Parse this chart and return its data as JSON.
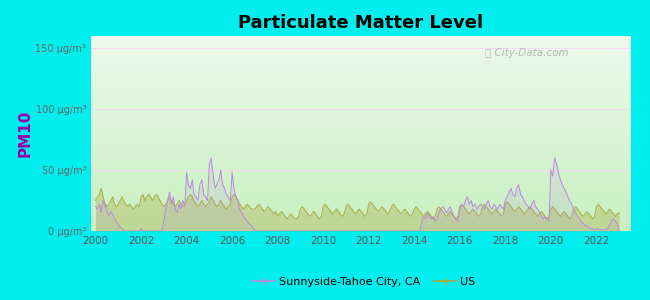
{
  "title": "Particulate Matter Level",
  "ylabel": "PM10",
  "ylabel_color": "#9900aa",
  "background_outer": "#00EEEE",
  "xmin": 1999.8,
  "xmax": 2023.5,
  "ymin": 0,
  "ymax": 160,
  "yticks": [
    0,
    50,
    100,
    150
  ],
  "ytick_labels": [
    "0 μg/m³",
    "50 μg/m³",
    "100 μg/m³",
    "150 μg/m³"
  ],
  "xticks": [
    2000,
    2002,
    2004,
    2006,
    2008,
    2010,
    2012,
    2014,
    2016,
    2018,
    2020,
    2022
  ],
  "city_color": "#bb88dd",
  "us_color": "#aaaa44",
  "legend_city_label": "Sunnyside-Tahoe City, CA",
  "legend_us_label": "US",
  "watermark": "⌕ City-Data.com",
  "bg_bottom": "#c8f0c0",
  "bg_top": "#edfaed",
  "city_x": [
    2000.0,
    2000.08,
    2000.17,
    2000.25,
    2000.33,
    2000.42,
    2000.5,
    2000.58,
    2000.67,
    2000.75,
    2000.83,
    2000.92,
    2001.0,
    2001.08,
    2001.17,
    2001.25,
    2001.33,
    2001.42,
    2001.5,
    2001.58,
    2001.67,
    2001.75,
    2001.83,
    2001.92,
    2002.0,
    2002.08,
    2002.17,
    2002.25,
    2002.33,
    2002.42,
    2002.5,
    2002.58,
    2002.67,
    2002.75,
    2002.83,
    2002.92,
    2003.0,
    2003.08,
    2003.17,
    2003.25,
    2003.33,
    2003.42,
    2003.5,
    2003.58,
    2003.67,
    2003.75,
    2003.83,
    2003.92,
    2004.0,
    2004.08,
    2004.17,
    2004.25,
    2004.33,
    2004.42,
    2004.5,
    2004.58,
    2004.67,
    2004.75,
    2004.83,
    2004.92,
    2005.0,
    2005.08,
    2005.17,
    2005.25,
    2005.33,
    2005.42,
    2005.5,
    2005.58,
    2005.67,
    2005.75,
    2005.83,
    2005.92,
    2006.0,
    2006.08,
    2006.17,
    2006.25,
    2006.33,
    2006.42,
    2006.5,
    2006.58,
    2006.67,
    2006.75,
    2006.83,
    2006.92,
    2007.0,
    2007.08,
    2007.17,
    2007.25,
    2007.33,
    2007.42,
    2007.5,
    2007.58,
    2007.67,
    2007.75,
    2007.83,
    2007.92,
    2008.0,
    2008.08,
    2008.17,
    2008.25,
    2008.33,
    2008.42,
    2008.5,
    2008.58,
    2008.67,
    2008.75,
    2008.83,
    2008.92,
    2009.0,
    2009.08,
    2009.17,
    2009.25,
    2009.33,
    2009.42,
    2009.5,
    2009.58,
    2009.67,
    2009.75,
    2009.83,
    2009.92,
    2010.0,
    2010.08,
    2010.17,
    2010.25,
    2010.33,
    2010.42,
    2010.5,
    2010.58,
    2010.67,
    2010.75,
    2010.83,
    2010.92,
    2011.0,
    2011.08,
    2011.17,
    2011.25,
    2011.33,
    2011.42,
    2011.5,
    2011.58,
    2011.67,
    2011.75,
    2011.83,
    2011.92,
    2012.0,
    2012.08,
    2012.17,
    2012.25,
    2012.33,
    2012.42,
    2012.5,
    2012.58,
    2012.67,
    2012.75,
    2012.83,
    2012.92,
    2013.0,
    2013.08,
    2013.17,
    2013.25,
    2013.33,
    2013.42,
    2013.5,
    2013.58,
    2013.67,
    2013.75,
    2013.83,
    2013.92,
    2014.0,
    2014.08,
    2014.17,
    2014.25,
    2014.33,
    2014.42,
    2014.5,
    2014.58,
    2014.67,
    2014.75,
    2014.83,
    2014.92,
    2015.0,
    2015.08,
    2015.17,
    2015.25,
    2015.33,
    2015.42,
    2015.5,
    2015.58,
    2015.67,
    2015.75,
    2015.83,
    2015.92,
    2016.0,
    2016.08,
    2016.17,
    2016.25,
    2016.33,
    2016.42,
    2016.5,
    2016.58,
    2016.67,
    2016.75,
    2016.83,
    2016.92,
    2017.0,
    2017.08,
    2017.17,
    2017.25,
    2017.33,
    2017.42,
    2017.5,
    2017.58,
    2017.67,
    2017.75,
    2017.83,
    2017.92,
    2018.0,
    2018.08,
    2018.17,
    2018.25,
    2018.33,
    2018.42,
    2018.5,
    2018.58,
    2018.67,
    2018.75,
    2018.83,
    2018.92,
    2019.0,
    2019.08,
    2019.17,
    2019.25,
    2019.33,
    2019.42,
    2019.5,
    2019.58,
    2019.67,
    2019.75,
    2019.83,
    2019.92,
    2020.0,
    2020.08,
    2020.17,
    2020.25,
    2020.33,
    2020.42,
    2020.5,
    2020.58,
    2020.67,
    2020.75,
    2020.83,
    2020.92,
    2021.0,
    2021.08,
    2021.17,
    2021.25,
    2021.33,
    2021.42,
    2021.5,
    2021.58,
    2021.67,
    2021.75,
    2021.83,
    2021.92,
    2022.0,
    2022.08,
    2022.17,
    2022.25,
    2022.33,
    2022.42,
    2022.5,
    2022.58,
    2022.67,
    2022.75,
    2022.83,
    2022.92,
    2023.0
  ],
  "city_y": [
    20,
    18,
    22,
    15,
    25,
    20,
    18,
    12,
    16,
    14,
    10,
    8,
    5,
    3,
    2,
    0,
    0,
    0,
    0,
    0,
    0,
    0,
    0,
    0,
    2,
    0,
    0,
    0,
    0,
    0,
    0,
    0,
    0,
    0,
    0,
    0,
    8,
    18,
    25,
    32,
    22,
    28,
    18,
    15,
    22,
    18,
    25,
    20,
    48,
    38,
    35,
    42,
    30,
    28,
    25,
    38,
    42,
    30,
    28,
    25,
    55,
    60,
    45,
    35,
    38,
    42,
    50,
    38,
    35,
    30,
    28,
    25,
    48,
    35,
    28,
    25,
    18,
    15,
    12,
    10,
    8,
    6,
    5,
    3,
    0,
    0,
    0,
    0,
    0,
    0,
    0,
    0,
    0,
    0,
    0,
    0,
    0,
    0,
    0,
    0,
    0,
    0,
    0,
    0,
    0,
    0,
    0,
    0,
    0,
    0,
    0,
    0,
    0,
    0,
    0,
    0,
    0,
    0,
    0,
    0,
    0,
    0,
    0,
    0,
    0,
    0,
    0,
    0,
    0,
    0,
    0,
    0,
    0,
    0,
    0,
    0,
    0,
    0,
    0,
    0,
    0,
    0,
    0,
    0,
    0,
    0,
    0,
    0,
    0,
    0,
    0,
    0,
    0,
    0,
    0,
    0,
    0,
    0,
    0,
    0,
    0,
    0,
    0,
    0,
    0,
    0,
    0,
    0,
    0,
    0,
    0,
    0,
    8,
    12,
    10,
    15,
    12,
    10,
    12,
    8,
    10,
    15,
    18,
    20,
    18,
    15,
    18,
    20,
    15,
    12,
    10,
    8,
    18,
    22,
    20,
    25,
    28,
    22,
    25,
    20,
    22,
    18,
    20,
    22,
    20,
    18,
    22,
    25,
    20,
    18,
    22,
    20,
    18,
    22,
    20,
    18,
    25,
    28,
    32,
    35,
    30,
    28,
    35,
    38,
    30,
    28,
    25,
    22,
    20,
    18,
    22,
    25,
    20,
    18,
    15,
    12,
    10,
    12,
    10,
    8,
    50,
    45,
    60,
    55,
    48,
    42,
    38,
    35,
    32,
    28,
    25,
    22,
    18,
    15,
    12,
    10,
    8,
    6,
    5,
    4,
    3,
    2,
    2,
    1,
    2,
    2,
    1,
    1,
    1,
    1,
    2,
    5,
    8,
    10,
    8,
    6,
    0
  ],
  "us_x": [
    2000.0,
    2000.08,
    2000.17,
    2000.25,
    2000.33,
    2000.42,
    2000.5,
    2000.58,
    2000.67,
    2000.75,
    2000.83,
    2000.92,
    2001.0,
    2001.08,
    2001.17,
    2001.25,
    2001.33,
    2001.42,
    2001.5,
    2001.58,
    2001.67,
    2001.75,
    2001.83,
    2001.92,
    2002.0,
    2002.08,
    2002.17,
    2002.25,
    2002.33,
    2002.42,
    2002.5,
    2002.58,
    2002.67,
    2002.75,
    2002.83,
    2002.92,
    2003.0,
    2003.08,
    2003.17,
    2003.25,
    2003.33,
    2003.42,
    2003.5,
    2003.58,
    2003.67,
    2003.75,
    2003.83,
    2003.92,
    2004.0,
    2004.08,
    2004.17,
    2004.25,
    2004.33,
    2004.42,
    2004.5,
    2004.58,
    2004.67,
    2004.75,
    2004.83,
    2004.92,
    2005.0,
    2005.08,
    2005.17,
    2005.25,
    2005.33,
    2005.42,
    2005.5,
    2005.58,
    2005.67,
    2005.75,
    2005.83,
    2005.92,
    2006.0,
    2006.08,
    2006.17,
    2006.25,
    2006.33,
    2006.42,
    2006.5,
    2006.58,
    2006.67,
    2006.75,
    2006.83,
    2006.92,
    2007.0,
    2007.08,
    2007.17,
    2007.25,
    2007.33,
    2007.42,
    2007.5,
    2007.58,
    2007.67,
    2007.75,
    2007.83,
    2007.92,
    2008.0,
    2008.08,
    2008.17,
    2008.25,
    2008.33,
    2008.42,
    2008.5,
    2008.58,
    2008.67,
    2008.75,
    2008.83,
    2008.92,
    2009.0,
    2009.08,
    2009.17,
    2009.25,
    2009.33,
    2009.42,
    2009.5,
    2009.58,
    2009.67,
    2009.75,
    2009.83,
    2009.92,
    2010.0,
    2010.08,
    2010.17,
    2010.25,
    2010.33,
    2010.42,
    2010.5,
    2010.58,
    2010.67,
    2010.75,
    2010.83,
    2010.92,
    2011.0,
    2011.08,
    2011.17,
    2011.25,
    2011.33,
    2011.42,
    2011.5,
    2011.58,
    2011.67,
    2011.75,
    2011.83,
    2011.92,
    2012.0,
    2012.08,
    2012.17,
    2012.25,
    2012.33,
    2012.42,
    2012.5,
    2012.58,
    2012.67,
    2012.75,
    2012.83,
    2012.92,
    2013.0,
    2013.08,
    2013.17,
    2013.25,
    2013.33,
    2013.42,
    2013.5,
    2013.58,
    2013.67,
    2013.75,
    2013.83,
    2013.92,
    2014.0,
    2014.08,
    2014.17,
    2014.25,
    2014.33,
    2014.42,
    2014.5,
    2014.58,
    2014.67,
    2014.75,
    2014.83,
    2014.92,
    2015.0,
    2015.08,
    2015.17,
    2015.25,
    2015.33,
    2015.42,
    2015.5,
    2015.58,
    2015.67,
    2015.75,
    2015.83,
    2015.92,
    2016.0,
    2016.08,
    2016.17,
    2016.25,
    2016.33,
    2016.42,
    2016.5,
    2016.58,
    2016.67,
    2016.75,
    2016.83,
    2016.92,
    2017.0,
    2017.08,
    2017.17,
    2017.25,
    2017.33,
    2017.42,
    2017.5,
    2017.58,
    2017.67,
    2017.75,
    2017.83,
    2017.92,
    2018.0,
    2018.08,
    2018.17,
    2018.25,
    2018.33,
    2018.42,
    2018.5,
    2018.58,
    2018.67,
    2018.75,
    2018.83,
    2018.92,
    2019.0,
    2019.08,
    2019.17,
    2019.25,
    2019.33,
    2019.42,
    2019.5,
    2019.58,
    2019.67,
    2019.75,
    2019.83,
    2019.92,
    2020.0,
    2020.08,
    2020.17,
    2020.25,
    2020.33,
    2020.42,
    2020.5,
    2020.58,
    2020.67,
    2020.75,
    2020.83,
    2020.92,
    2021.0,
    2021.08,
    2021.17,
    2021.25,
    2021.33,
    2021.42,
    2021.5,
    2021.58,
    2021.67,
    2021.75,
    2021.83,
    2021.92,
    2022.0,
    2022.08,
    2022.17,
    2022.25,
    2022.33,
    2022.42,
    2022.5,
    2022.58,
    2022.67,
    2022.75,
    2022.83,
    2022.92,
    2023.0
  ],
  "us_y": [
    25,
    28,
    30,
    35,
    28,
    22,
    20,
    22,
    25,
    28,
    22,
    20,
    22,
    25,
    28,
    24,
    22,
    20,
    22,
    20,
    18,
    20,
    22,
    20,
    28,
    30,
    25,
    28,
    30,
    28,
    25,
    28,
    30,
    28,
    25,
    22,
    20,
    22,
    25,
    28,
    25,
    22,
    20,
    22,
    25,
    22,
    20,
    22,
    25,
    28,
    30,
    28,
    25,
    22,
    20,
    22,
    25,
    22,
    20,
    22,
    25,
    28,
    25,
    22,
    20,
    22,
    25,
    22,
    20,
    18,
    20,
    22,
    28,
    30,
    28,
    25,
    22,
    20,
    18,
    20,
    22,
    20,
    18,
    18,
    18,
    20,
    22,
    20,
    18,
    16,
    18,
    20,
    18,
    16,
    14,
    16,
    12,
    14,
    16,
    14,
    12,
    10,
    12,
    14,
    12,
    10,
    10,
    12,
    18,
    20,
    18,
    16,
    14,
    12,
    14,
    16,
    14,
    12,
    10,
    12,
    20,
    22,
    20,
    18,
    16,
    14,
    16,
    18,
    16,
    14,
    12,
    14,
    20,
    22,
    20,
    18,
    16,
    14,
    16,
    18,
    16,
    14,
    12,
    14,
    22,
    24,
    22,
    20,
    18,
    16,
    18,
    20,
    18,
    16,
    14,
    16,
    20,
    22,
    20,
    18,
    16,
    14,
    16,
    18,
    16,
    14,
    12,
    14,
    18,
    20,
    18,
    16,
    14,
    12,
    14,
    16,
    14,
    12,
    10,
    12,
    18,
    20,
    18,
    16,
    14,
    12,
    14,
    16,
    14,
    12,
    10,
    12,
    20,
    22,
    20,
    18,
    16,
    14,
    16,
    18,
    16,
    14,
    12,
    14,
    20,
    22,
    20,
    18,
    16,
    14,
    16,
    18,
    16,
    14,
    12,
    14,
    22,
    24,
    22,
    20,
    18,
    16,
    18,
    20,
    18,
    16,
    14,
    16,
    18,
    20,
    18,
    16,
    14,
    12,
    14,
    16,
    14,
    12,
    10,
    12,
    18,
    20,
    18,
    16,
    14,
    12,
    14,
    16,
    14,
    12,
    10,
    12,
    18,
    20,
    18,
    16,
    14,
    12,
    14,
    16,
    14,
    12,
    10,
    12,
    20,
    22,
    20,
    18,
    16,
    14,
    16,
    18,
    16,
    14,
    12,
    14,
    15
  ]
}
